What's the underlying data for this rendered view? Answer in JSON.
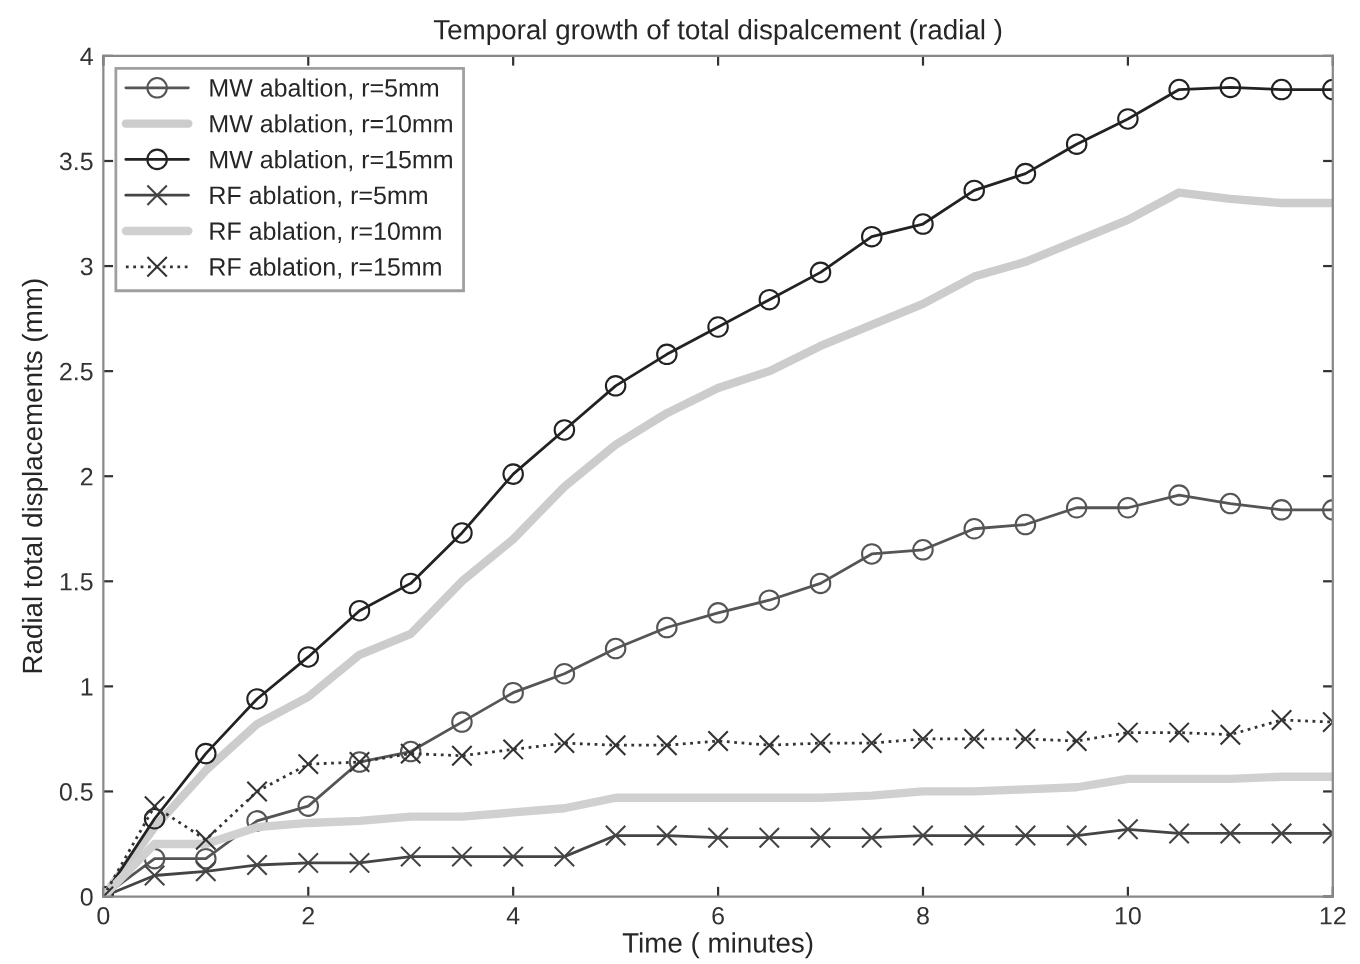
{
  "chart_data": {
    "type": "line",
    "title": "Temporal growth of total dispalcement (radial )",
    "xlabel": "Time ( minutes)",
    "ylabel": "Radial total displacements (mm)",
    "x": [
      0,
      0.5,
      1,
      1.5,
      2,
      2.5,
      3,
      3.5,
      4,
      4.5,
      5,
      5.5,
      6,
      6.5,
      7,
      7.5,
      8,
      8.5,
      9,
      9.5,
      10,
      10.5,
      11,
      11.5,
      12
    ],
    "series": [
      {
        "name": "MW abaltion, r=5mm",
        "color": "#555555",
        "marker": "circle",
        "line_style": "solid",
        "values": [
          0,
          0.18,
          0.18,
          0.36,
          0.43,
          0.64,
          0.69,
          0.83,
          0.97,
          1.06,
          1.18,
          1.28,
          1.35,
          1.41,
          1.49,
          1.63,
          1.65,
          1.75,
          1.77,
          1.85,
          1.85,
          1.91,
          1.87,
          1.84,
          1.84
        ]
      },
      {
        "name": "MW ablation, r=10mm",
        "color": "#cccccc",
        "marker": "none",
        "line_style": "solid",
        "values": [
          0,
          0.33,
          0.6,
          0.82,
          0.95,
          1.15,
          1.25,
          1.5,
          1.7,
          1.95,
          2.15,
          2.3,
          2.42,
          2.5,
          2.62,
          2.72,
          2.82,
          2.95,
          3.02,
          3.12,
          3.22,
          3.35,
          3.32,
          3.3,
          3.3
        ]
      },
      {
        "name": "MW ablation, r=15mm",
        "color": "#222222",
        "marker": "circle",
        "line_style": "solid",
        "values": [
          0,
          0.37,
          0.68,
          0.94,
          1.14,
          1.36,
          1.49,
          1.73,
          2.01,
          2.22,
          2.43,
          2.58,
          2.71,
          2.84,
          2.97,
          3.14,
          3.2,
          3.36,
          3.44,
          3.58,
          3.7,
          3.84,
          3.85,
          3.84,
          3.84
        ]
      },
      {
        "name": "RF ablation, r=5mm",
        "color": "#444444",
        "marker": "cross",
        "line_style": "solid",
        "values": [
          0,
          0.1,
          0.12,
          0.15,
          0.16,
          0.16,
          0.19,
          0.19,
          0.19,
          0.19,
          0.29,
          0.29,
          0.28,
          0.28,
          0.28,
          0.28,
          0.29,
          0.29,
          0.29,
          0.29,
          0.32,
          0.3,
          0.3,
          0.3,
          0.3
        ]
      },
      {
        "name": "RF ablation, r=10mm",
        "color": "#d0d0d0",
        "marker": "none",
        "line_style": "solid",
        "values": [
          0,
          0.25,
          0.25,
          0.33,
          0.35,
          0.36,
          0.38,
          0.38,
          0.4,
          0.42,
          0.47,
          0.47,
          0.47,
          0.47,
          0.47,
          0.48,
          0.5,
          0.5,
          0.51,
          0.52,
          0.56,
          0.56,
          0.56,
          0.57,
          0.57
        ]
      },
      {
        "name": "RF ablation, r=15mm",
        "color": "#333333",
        "marker": "cross",
        "line_style": "dotted",
        "values": [
          0,
          0.43,
          0.27,
          0.5,
          0.63,
          0.64,
          0.68,
          0.67,
          0.7,
          0.73,
          0.72,
          0.72,
          0.74,
          0.72,
          0.73,
          0.73,
          0.75,
          0.75,
          0.75,
          0.74,
          0.78,
          0.78,
          0.77,
          0.84,
          0.83
        ]
      }
    ],
    "xlim": [
      0,
      12
    ],
    "xticks": [
      0,
      2,
      4,
      6,
      8,
      10,
      12
    ],
    "ylim": [
      0,
      4
    ],
    "yticks": [
      0,
      0.5,
      1,
      1.5,
      2,
      2.5,
      3,
      3.5,
      4
    ],
    "grid": false,
    "legend": "top left"
  }
}
